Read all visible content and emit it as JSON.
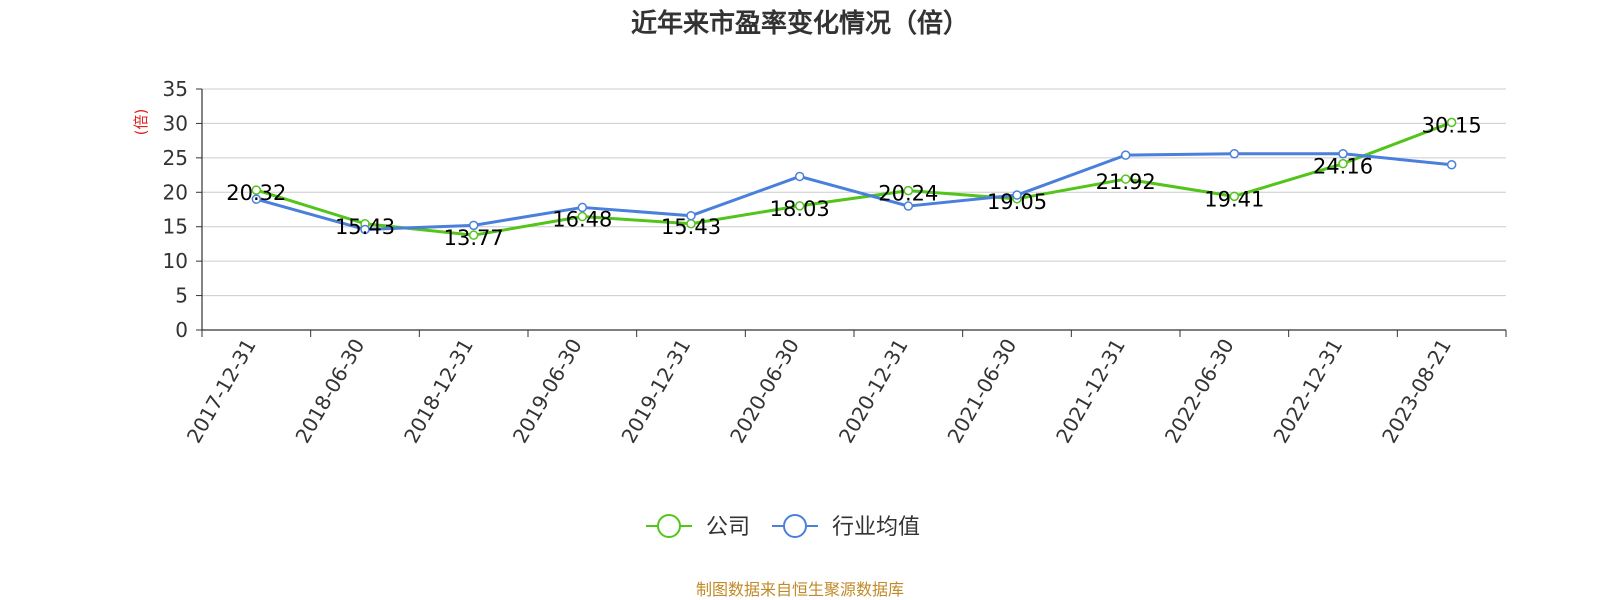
{
  "chart_data": {
    "type": "line",
    "title": "近年来市盈率变化情况（倍）",
    "ylabel": "(倍)",
    "xlabel": "",
    "ylim": [
      0,
      35
    ],
    "yticks": [
      0,
      5,
      10,
      15,
      20,
      25,
      30,
      35
    ],
    "categories": [
      "2017-12-31",
      "2018-06-30",
      "2018-12-31",
      "2019-06-30",
      "2019-12-31",
      "2020-06-30",
      "2020-12-31",
      "2021-06-30",
      "2021-12-31",
      "2022-06-30",
      "2022-12-31",
      "2023-08-21"
    ],
    "grid": true,
    "legend_position": "bottom",
    "series": [
      {
        "name": "公司",
        "color": "#52c41a",
        "values": [
          20.32,
          15.43,
          13.77,
          16.48,
          15.43,
          18.03,
          20.24,
          19.05,
          21.92,
          19.41,
          24.16,
          30.15
        ],
        "labels": [
          "20.32",
          "15.43",
          "13.77",
          "16.48",
          "15.43",
          "18.03",
          "20.24",
          "19.05",
          "21.92",
          "19.41",
          "24.16",
          "30.15"
        ]
      },
      {
        "name": "行业均值",
        "color": "#4a7fdc",
        "values": [
          19.0,
          14.6,
          15.2,
          17.8,
          16.6,
          22.3,
          18.0,
          19.6,
          25.4,
          25.6,
          25.6,
          24.0
        ]
      }
    ]
  },
  "footer": {
    "source": "制图数据来自恒生聚源数据库"
  }
}
